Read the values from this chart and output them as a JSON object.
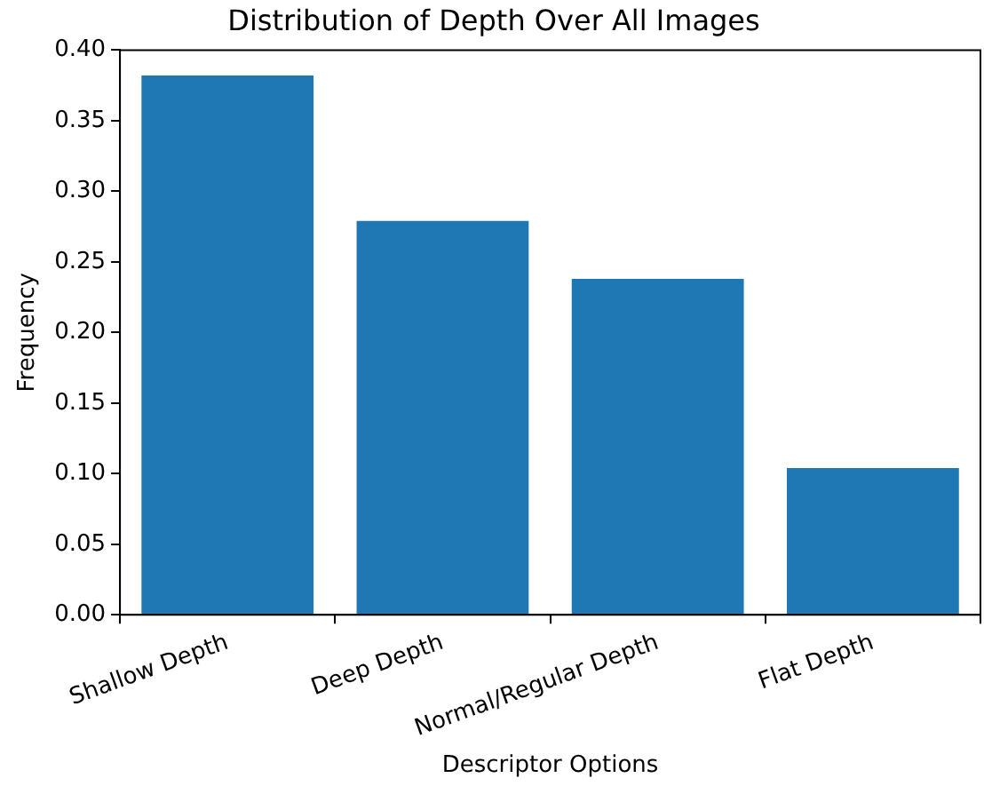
{
  "chart_data": {
    "type": "bar",
    "title": "Distribution of Depth Over All Images",
    "xlabel": "Descriptor Options",
    "ylabel": "Frequency",
    "categories": [
      "Shallow Depth",
      "Deep Depth",
      "Normal/Regular Depth",
      "Flat Depth"
    ],
    "values": [
      0.382,
      0.279,
      0.238,
      0.104
    ],
    "color": "#1f77b4",
    "ylim": [
      0,
      0.4
    ],
    "yticks": [
      {
        "value": 0,
        "label": "0.00"
      },
      {
        "value": 0.05,
        "label": "0.05"
      },
      {
        "value": 0.1,
        "label": "0.10"
      },
      {
        "value": 0.15,
        "label": "0.15"
      },
      {
        "value": 0.2,
        "label": "0.20"
      },
      {
        "value": 0.25,
        "label": "0.25"
      },
      {
        "value": 0.3,
        "label": "0.30"
      },
      {
        "value": 0.35,
        "label": "0.35"
      },
      {
        "value": 0.4,
        "label": "0.40"
      }
    ]
  }
}
